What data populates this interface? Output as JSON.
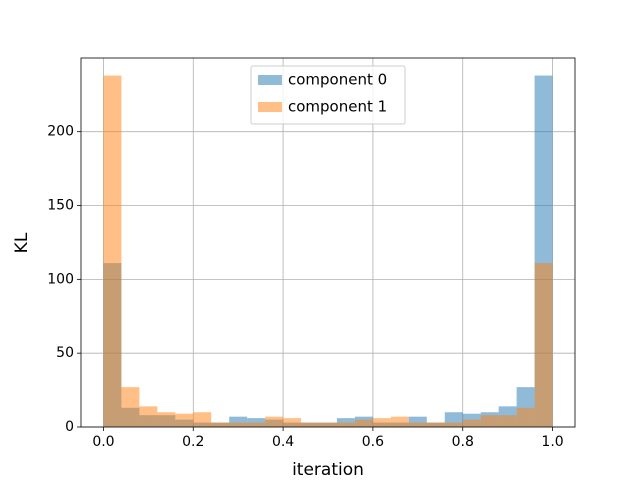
{
  "chart_data": {
    "type": "histogram",
    "xlabel": "iteration",
    "ylabel": "KL",
    "bins": [
      0,
      0.04,
      0.08,
      0.12,
      0.16,
      0.2,
      0.24,
      0.28,
      0.32,
      0.36,
      0.4,
      0.44,
      0.48,
      0.52,
      0.56,
      0.6,
      0.64,
      0.68,
      0.72,
      0.76,
      0.8,
      0.84,
      0.88,
      0.92,
      0.96,
      1
    ],
    "series": [
      {
        "name": "component 0",
        "color": "#1f77b4",
        "values": [
          111,
          13,
          8,
          8,
          5,
          3,
          3,
          7,
          6,
          5,
          3,
          3,
          3,
          6,
          7,
          3,
          3,
          7,
          3,
          10,
          9,
          10,
          14,
          27,
          238
        ]
      },
      {
        "name": "component 1",
        "color": "#ff7f0e",
        "values": [
          238,
          27,
          14,
          10,
          9,
          10,
          3,
          3,
          3,
          7,
          6,
          3,
          3,
          3,
          5,
          6,
          7,
          3,
          3,
          3,
          5,
          8,
          8,
          13,
          111
        ]
      }
    ],
    "opacity": 0.5,
    "xlim": [
      -0.05,
      1.05
    ],
    "ylim": [
      0,
      249.9
    ],
    "xticks": [
      {
        "value": 0,
        "label": "0.0"
      },
      0.2,
      0.4,
      0.6,
      0.8,
      {
        "value": 1,
        "label": "1.0"
      }
    ],
    "yticks": [
      0,
      50,
      100,
      150,
      200
    ],
    "grid": true,
    "legend": "upper center"
  }
}
